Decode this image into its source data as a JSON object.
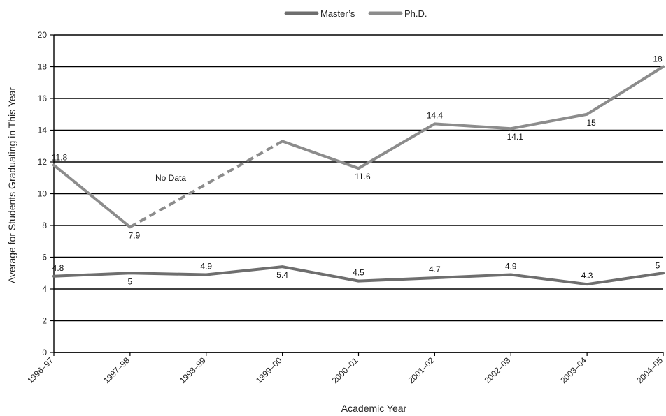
{
  "chart_data": {
    "type": "line",
    "x": [
      "1996–97",
      "1997–98",
      "1998–99",
      "1999–00",
      "2000–01",
      "2001–02",
      "2002–03",
      "2003–04",
      "2004–05"
    ],
    "series": [
      {
        "name": "Master’s",
        "values": [
          4.8,
          5.0,
          4.9,
          5.4,
          4.5,
          4.7,
          4.9,
          4.3,
          5.0
        ],
        "labels": [
          "4.8",
          "5",
          "4.9",
          "5.4",
          "4.5",
          "4.7",
          "4.9",
          "4.3",
          "5"
        ],
        "color": "#6e6e6e"
      },
      {
        "name": "Ph.D.",
        "values": [
          11.8,
          7.9,
          null,
          13.3,
          11.6,
          14.4,
          14.1,
          15.0,
          18.0
        ],
        "labels": [
          "11.8",
          "7.9",
          "",
          "",
          "11.6",
          "14.4",
          "14.1",
          "15",
          "18"
        ],
        "color": "#8c8c8c"
      }
    ],
    "annotations": [
      {
        "text": "No Data"
      }
    ],
    "xlabel": "Academic Year",
    "ylabel": "Average for Students Graduating in This Year",
    "ylim": [
      0,
      20
    ],
    "yticks": [
      "0",
      "2",
      "4",
      "6",
      "8",
      "10",
      "12",
      "14",
      "16",
      "18",
      "20"
    ],
    "grid": true,
    "legend": "top-center"
  }
}
